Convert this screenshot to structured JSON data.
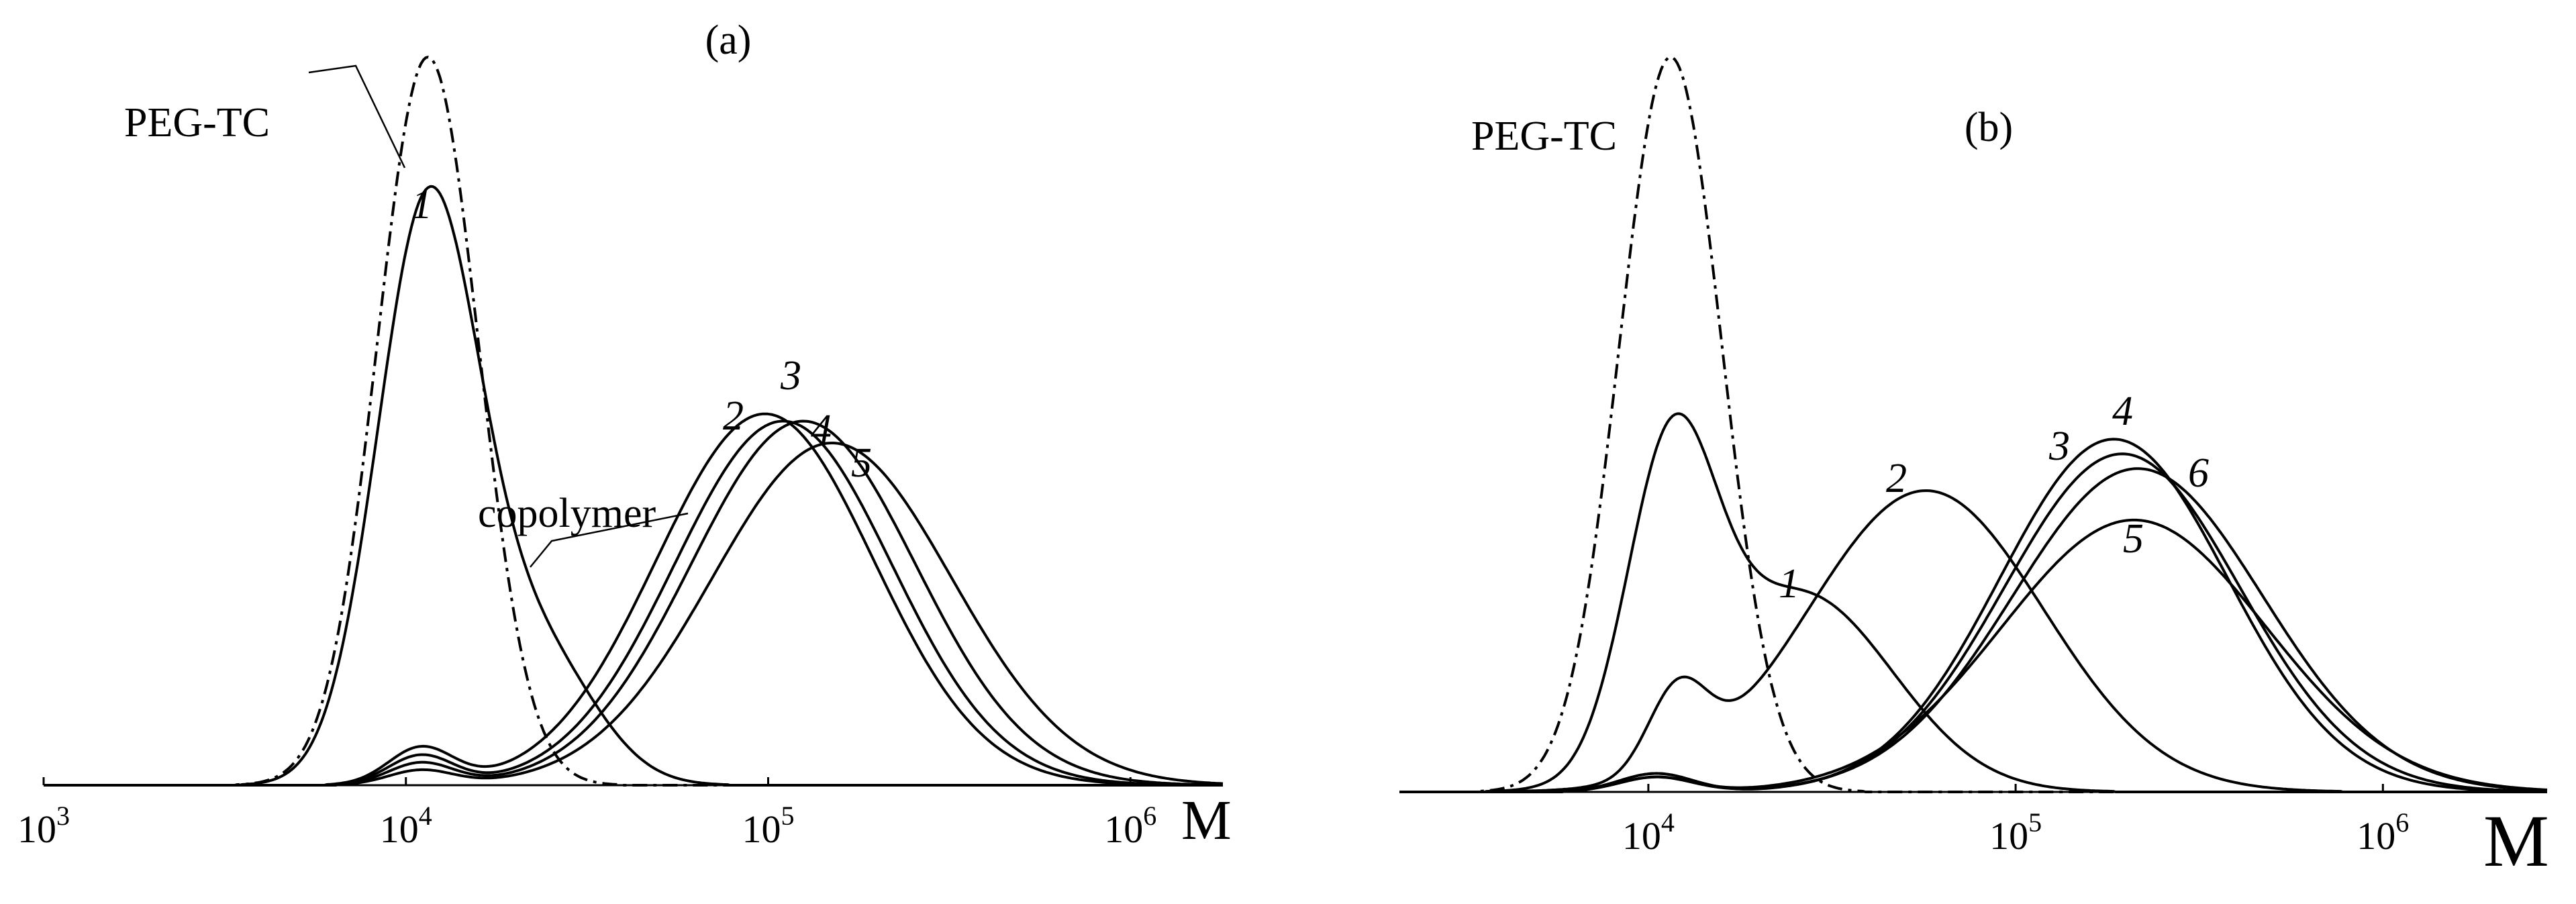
{
  "chart_data": [
    {
      "type": "line",
      "panel": "(a)",
      "xlabel": "M",
      "xscale": "log",
      "xlim": [
        1000,
        1800000
      ],
      "x_ticks": [
        {
          "value": 1000,
          "base": "10",
          "exp": "3"
        },
        {
          "value": 10000,
          "base": "10",
          "exp": "4"
        },
        {
          "value": 100000,
          "base": "10",
          "exp": "5"
        },
        {
          "value": 1000000,
          "base": "10",
          "exp": "6"
        }
      ],
      "ylim": [
        0,
        1
      ],
      "series": [
        {
          "name": "PEG-TC",
          "label": "PEG-TC",
          "style": "dashdot",
          "components": [
            {
              "center": 11500,
              "amp": 1.0,
              "sigma": 0.14
            }
          ]
        },
        {
          "name": "1",
          "label": "1",
          "style": "solid",
          "components": [
            {
              "center": 11500,
              "amp": 0.79,
              "sigma": 0.14
            },
            {
              "center": 23000,
              "amp": 0.18,
              "sigma": 0.16
            }
          ]
        },
        {
          "name": "2",
          "label": "2",
          "style": "solid",
          "components": [
            {
              "center": 11000,
              "amp": 0.05,
              "sigma": 0.09
            },
            {
              "center": 98000,
              "amp": 0.51,
              "sigma": 0.3
            }
          ]
        },
        {
          "name": "3",
          "label": "3",
          "style": "solid",
          "components": [
            {
              "center": 11000,
              "amp": 0.04,
              "sigma": 0.09
            },
            {
              "center": 110000,
              "amp": 0.5,
              "sigma": 0.3
            }
          ]
        },
        {
          "name": "4",
          "label": "4",
          "style": "solid",
          "components": [
            {
              "center": 11000,
              "amp": 0.03,
              "sigma": 0.09
            },
            {
              "center": 125000,
              "amp": 0.5,
              "sigma": 0.31
            }
          ]
        },
        {
          "name": "5",
          "label": "5",
          "style": "solid",
          "components": [
            {
              "center": 11000,
              "amp": 0.02,
              "sigma": 0.09
            },
            {
              "center": 150000,
              "amp": 0.47,
              "sigma": 0.33
            }
          ]
        }
      ],
      "annotations": [
        "PEG-TC",
        "copolymer",
        "1",
        "2",
        "3",
        "4",
        "5"
      ]
    },
    {
      "type": "line",
      "panel": "(b)",
      "xlabel": "M",
      "xscale": "log",
      "xlim": [
        2100,
        2800000
      ],
      "x_ticks": [
        {
          "value": 10000,
          "base": "10",
          "exp": "4"
        },
        {
          "value": 100000,
          "base": "10",
          "exp": "5"
        },
        {
          "value": 1000000,
          "base": "10",
          "exp": "6"
        }
      ],
      "ylim": [
        0,
        1
      ],
      "series": [
        {
          "name": "PEG-TC",
          "label": "PEG-TC",
          "style": "dashdot",
          "components": [
            {
              "center": 11500,
              "amp": 1.0,
              "sigma": 0.14
            }
          ]
        },
        {
          "name": "1",
          "label": "1",
          "style": "solid",
          "components": [
            {
              "center": 11500,
              "amp": 0.41,
              "sigma": 0.12
            },
            {
              "center": 26000,
              "amp": 0.27,
              "sigma": 0.25
            }
          ]
        },
        {
          "name": "2",
          "label": "2",
          "style": "solid",
          "components": [
            {
              "center": 12000,
              "amp": 0.11,
              "sigma": 0.08
            },
            {
              "center": 57000,
              "amp": 0.41,
              "sigma": 0.32
            }
          ]
        },
        {
          "name": "3",
          "label": "3",
          "style": "solid",
          "components": [
            {
              "center": 10500,
              "amp": 0.025,
              "sigma": 0.1
            },
            {
              "center": 185000,
              "amp": 0.48,
              "sigma": 0.31
            }
          ]
        },
        {
          "name": "4",
          "label": "4",
          "style": "solid",
          "components": [
            {
              "center": 10500,
              "amp": 0.025,
              "sigma": 0.1
            },
            {
              "center": 195000,
              "amp": 0.46,
              "sigma": 0.32
            }
          ]
        },
        {
          "name": "5",
          "label": "5",
          "style": "solid",
          "components": [
            {
              "center": 10500,
              "amp": 0.02,
              "sigma": 0.1
            },
            {
              "center": 210000,
              "amp": 0.37,
              "sigma": 0.36
            }
          ]
        },
        {
          "name": "6",
          "label": "6",
          "style": "solid",
          "components": [
            {
              "center": 10500,
              "amp": 0.02,
              "sigma": 0.1
            },
            {
              "center": 215000,
              "amp": 0.44,
              "sigma": 0.34
            }
          ]
        }
      ],
      "annotations": [
        "PEG-TC",
        "1",
        "2",
        "3",
        "4",
        "5",
        "6"
      ]
    }
  ]
}
